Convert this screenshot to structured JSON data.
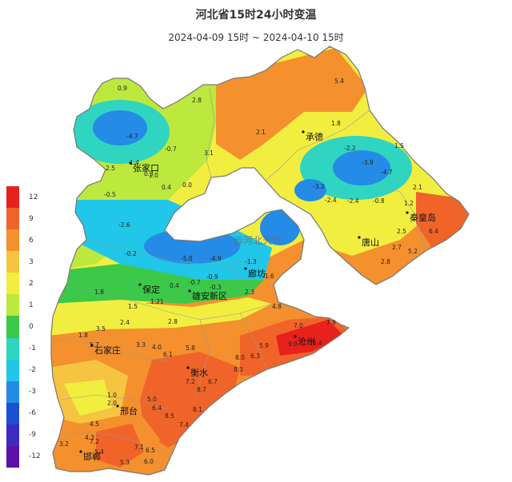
{
  "header": {
    "title": "河北省15时24小时变温",
    "subtitle": "2024-04-09 15时 ~ 2024-04-10 15时"
  },
  "legend": {
    "bands": [
      {
        "color": "#e8211c"
      },
      {
        "color": "#f0642a"
      },
      {
        "color": "#f4902d"
      },
      {
        "color": "#f5c542"
      },
      {
        "color": "#f2ee3f"
      },
      {
        "color": "#bde83e"
      },
      {
        "color": "#3cc848"
      },
      {
        "color": "#2fd5c1"
      },
      {
        "color": "#20c7e8"
      },
      {
        "color": "#248be6"
      },
      {
        "color": "#1c4fd2"
      },
      {
        "color": "#3d2bc2"
      },
      {
        "color": "#5a12a8"
      }
    ],
    "labels": [
      "12",
      "9",
      "6",
      "3",
      "2",
      "1",
      "0",
      "-1",
      "-2",
      "-3",
      "-6",
      "-9",
      "-12"
    ]
  },
  "cities": [
    {
      "name": "承德"
    },
    {
      "name": "张家口"
    },
    {
      "name": "秦皇岛"
    },
    {
      "name": "唐山"
    },
    {
      "name": "廊坊"
    },
    {
      "name": "保定"
    },
    {
      "name": "雄安新区"
    },
    {
      "name": "沧州"
    },
    {
      "name": "石家庄"
    },
    {
      "name": "衡水"
    },
    {
      "name": "邢台"
    },
    {
      "name": "邯郸"
    }
  ],
  "values": [
    "0.9",
    "2.8",
    "5.4",
    "-4.7",
    "-0.7",
    "1.8",
    "-2.2",
    "-3.9",
    "-4.7",
    "2.1",
    "3.1",
    "1.4",
    "2.5",
    "1.0",
    "0.4",
    "0.0",
    "-0.5",
    "1.5",
    "-3.2",
    "-2.4",
    "-0.8",
    "1.2",
    "2.1",
    "2.5",
    "6.4",
    "5.2",
    "2.7",
    "2.8",
    "-2.6",
    "-5.0",
    "-4.9",
    "-0.2",
    "-1.3",
    "-1.6",
    "0.4",
    "-0.7",
    "-0.3",
    "-0.9",
    "2.3",
    "1.8",
    "1.5",
    "1.21",
    "2.8",
    "2.4",
    "3.5",
    "1.8",
    "4.8",
    "7.0",
    "7.9",
    "9.0",
    "10.4",
    "5.9",
    "5.7",
    "3.3",
    "4.0",
    "6.1",
    "5.8",
    "6.7",
    "8.0",
    "7.2",
    "8.7",
    "8.3",
    "6.3",
    "8.5",
    "8.1",
    "7.4",
    "5.0",
    "6.4",
    "4.5",
    "7.2",
    "7.1",
    "6.5",
    "5.3",
    "6.0",
    "5.4",
    "3.2",
    "4.3",
    "1.0",
    "2.0",
    "0.3",
    "-2.4"
  ],
  "watermark": "@河北天气"
}
